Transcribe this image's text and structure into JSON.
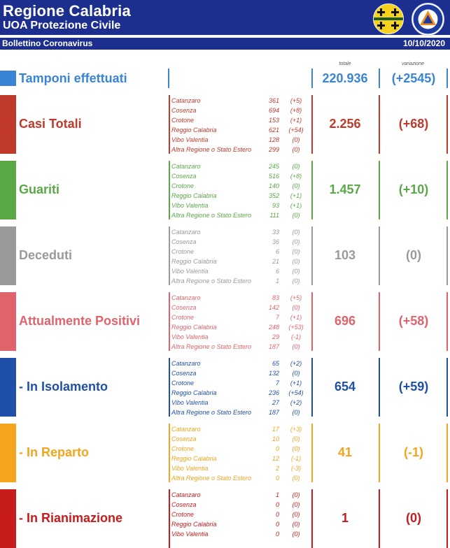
{
  "header": {
    "title": "Regione Calabria",
    "subtitle": "UOA Protezione Civile",
    "bulletin_label": "Bollettino Coronavirus",
    "date": "10/10/2020",
    "logo2_text": "PROTEZIONE CIVILE"
  },
  "columns": {
    "totale": "totale",
    "variazione": "variazione"
  },
  "tamponi": {
    "label": "Tamponi effettuati",
    "total": "220.936",
    "variation": "(+2545)",
    "color": "#3a84d8"
  },
  "sections": [
    {
      "label": "Casi Totali",
      "color": "#c0392b",
      "total": "2.256",
      "variation": "(+68)",
      "rows": [
        {
          "name": "Catanzaro",
          "value": "361",
          "change": "(+5)"
        },
        {
          "name": "Cosenza",
          "value": "694",
          "change": "(+8)"
        },
        {
          "name": "Crotone",
          "value": "153",
          "change": "(+1)"
        },
        {
          "name": "Reggio Calabria",
          "value": "621",
          "change": "(+54)"
        },
        {
          "name": "Vibo Valentia",
          "value": "128",
          "change": "(0)"
        },
        {
          "name": "Altra Regione o Stato Estero",
          "value": "299",
          "change": "(0)"
        }
      ]
    },
    {
      "label": "Guariti",
      "color": "#5aa845",
      "total": "1.457",
      "variation": "(+10)",
      "rows": [
        {
          "name": "Catanzaro",
          "value": "245",
          "change": "(0)"
        },
        {
          "name": "Cosenza",
          "value": "516",
          "change": "(+8)"
        },
        {
          "name": "Crotone",
          "value": "140",
          "change": "(0)"
        },
        {
          "name": "Reggio Calabria",
          "value": "352",
          "change": "(+1)"
        },
        {
          "name": "Vibo Valentia",
          "value": "93",
          "change": "(+1)"
        },
        {
          "name": "Altra Regione o Stato Estero",
          "value": "111",
          "change": "(0)"
        }
      ]
    },
    {
      "label": "Deceduti",
      "color": "#9a9a9a",
      "total": "103",
      "variation": "(0)",
      "rows": [
        {
          "name": "Catanzaro",
          "value": "33",
          "change": "(0)"
        },
        {
          "name": "Cosenza",
          "value": "36",
          "change": "(0)"
        },
        {
          "name": "Crotone",
          "value": "6",
          "change": "(0)"
        },
        {
          "name": "Reggio Calabria",
          "value": "21",
          "change": "(0)"
        },
        {
          "name": "Vibo Valentia",
          "value": "6",
          "change": "(0)"
        },
        {
          "name": "Altra Regione o Stato Estero",
          "value": "1",
          "change": "(0)"
        }
      ]
    },
    {
      "label": "Attualmente Positivi",
      "color": "#e0636b",
      "total": "696",
      "variation": "(+58)",
      "rows": [
        {
          "name": "Catanzaro",
          "value": "83",
          "change": "(+5)"
        },
        {
          "name": "Cosenza",
          "value": "142",
          "change": "(0)"
        },
        {
          "name": "Crotone",
          "value": "7",
          "change": "(+1)"
        },
        {
          "name": "Reggio Calabria",
          "value": "248",
          "change": "(+53)"
        },
        {
          "name": "Vibo Valentia",
          "value": "29",
          "change": "(-1)"
        },
        {
          "name": "Altra Regione o Stato Estero",
          "value": "187",
          "change": "(0)"
        }
      ]
    },
    {
      "label": "- In Isolamento",
      "color": "#1f4fa8",
      "total": "654",
      "variation": "(+59)",
      "rows": [
        {
          "name": "Catanzaro",
          "value": "65",
          "change": "(+2)"
        },
        {
          "name": "Cosenza",
          "value": "132",
          "change": "(0)"
        },
        {
          "name": "Crotone",
          "value": "7",
          "change": "(+1)"
        },
        {
          "name": "Reggio Calabria",
          "value": "236",
          "change": "(+54)"
        },
        {
          "name": "Vibo Valentia",
          "value": "27",
          "change": "(+2)"
        },
        {
          "name": "Altra Regione o Stato Estero",
          "value": "187",
          "change": "(0)"
        }
      ]
    },
    {
      "label": "- In Reparto",
      "color": "#f2a51d",
      "total": "41",
      "variation": "(-1)",
      "rows": [
        {
          "name": "Catanzaro",
          "value": "17",
          "change": "(+3)"
        },
        {
          "name": "Cosenza",
          "value": "10",
          "change": "(0)"
        },
        {
          "name": "Crotone",
          "value": "0",
          "change": "(0)"
        },
        {
          "name": "Reggio Calabria",
          "value": "12",
          "change": "(-1)"
        },
        {
          "name": "Vibo Valentia",
          "value": "2",
          "change": "(-3)"
        },
        {
          "name": "Altra Regione o Stato Estero",
          "value": "0",
          "change": "(0)"
        }
      ]
    },
    {
      "label": "- In Rianimazione",
      "color": "#c81b1b",
      "total": "1",
      "variation": "(0)",
      "rows": [
        {
          "name": "Catanzaro",
          "value": "1",
          "change": "(0)"
        },
        {
          "name": "Cosenza",
          "value": "0",
          "change": "(0)"
        },
        {
          "name": "Crotone",
          "value": "0",
          "change": "(0)"
        },
        {
          "name": "Reggio Calabria",
          "value": "0",
          "change": "(0)"
        },
        {
          "name": "Vibo Valentia",
          "value": "0",
          "change": "(0)"
        }
      ]
    }
  ]
}
